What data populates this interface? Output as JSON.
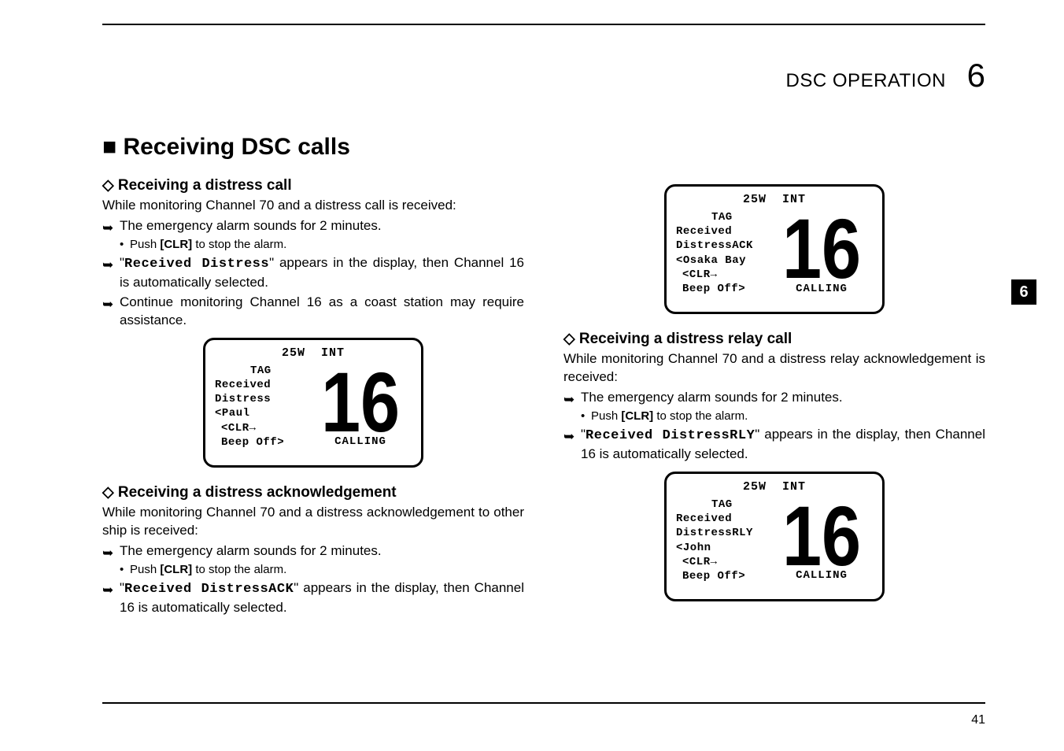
{
  "header": {
    "section_name": "DSC OPERATION",
    "chapter_num": "6"
  },
  "main_heading": "■ Receiving DSC calls",
  "side_tab": "6",
  "page_number": "41",
  "col_left": {
    "sub1": {
      "heading": "◇ Receiving a distress call",
      "intro": "While monitoring Channel 70 and a distress call is received:",
      "b1": "The emergency alarm sounds for 2 minutes.",
      "b1a_prefix": "Push ",
      "b1a_bold": "[CLR]",
      "b1a_suffix": " to stop the alarm.",
      "b2_prefix": "\"",
      "b2_mono": "Received Distress",
      "b2_suffix": "\" appears in the display, then Channel 16 is automatically selected.",
      "b3": "Continue monitoring Channel 16 as a coast station may require assistance."
    },
    "lcd1": {
      "power": "25W",
      "band": "INT",
      "tag": "TAG",
      "l1": "Received",
      "l2": "Distress",
      "l3": "<Paul",
      "clr": "<CLR→",
      "beep": "Beep Off>",
      "channel": "16",
      "calling": "CALLING"
    },
    "sub2": {
      "heading": "◇ Receiving a distress acknowledgement",
      "intro": "While monitoring Channel 70 and a distress acknowledgement to other ship is received:",
      "b1": "The emergency alarm sounds for 2 minutes.",
      "b1a_prefix": "Push ",
      "b1a_bold": "[CLR]",
      "b1a_suffix": " to stop the alarm.",
      "b2_prefix": "\"",
      "b2_mono": "Received DistressACK",
      "b2_suffix": "\" appears in the display, then Channel 16 is automatically selected."
    }
  },
  "col_right": {
    "lcd2": {
      "power": "25W",
      "band": "INT",
      "tag": "TAG",
      "l1": "Received",
      "l2": "DistressACK",
      "l3": "<Osaka Bay",
      "clr": "<CLR→",
      "beep": "Beep Off>",
      "channel": "16",
      "calling": "CALLING"
    },
    "sub3": {
      "heading": "◇ Receiving a distress relay call",
      "intro": "While monitoring Channel 70 and a distress relay acknowledgement is received:",
      "b1": "The emergency alarm sounds for 2 minutes.",
      "b1a_prefix": "Push ",
      "b1a_bold": "[CLR]",
      "b1a_suffix": " to stop the alarm.",
      "b2_prefix": "\"",
      "b2_mono": "Received DistressRLY",
      "b2_suffix": "\" appears in the display, then Channel 16 is automatically selected."
    },
    "lcd3": {
      "power": "25W",
      "band": "INT",
      "tag": "TAG",
      "l1": "Received",
      "l2": "DistressRLY",
      "l3": "<John",
      "clr": "<CLR→",
      "beep": "Beep Off>",
      "channel": "16",
      "calling": "CALLING"
    }
  }
}
